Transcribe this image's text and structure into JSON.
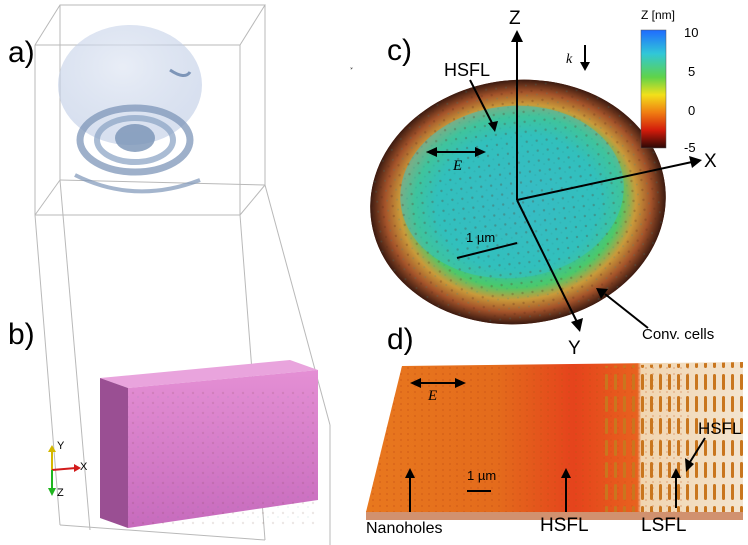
{
  "panels": {
    "a": "a)",
    "b": "b)",
    "c": "c)",
    "d": "d)"
  },
  "panel_b_axes": {
    "y": "Y",
    "x": "X",
    "z": "Z"
  },
  "panel_c": {
    "axes": {
      "z": "Z",
      "x": "X",
      "y": "Y"
    },
    "hsfl": "HSFL",
    "e_vector": "E",
    "k_vector": "k",
    "scale_bar": "1 µm",
    "conv_cells": "Conv. cells",
    "stray_mark": "ꜘ",
    "colorbar": {
      "title": "Z [nm]",
      "ticks": [
        "10",
        "5",
        "0",
        "-5"
      ],
      "range": [
        -5,
        10
      ],
      "colors": [
        "#1f6bff",
        "#31c7d8",
        "#5fd34a",
        "#f2e01a",
        "#f07d12",
        "#d21b0b",
        "#2a0805"
      ]
    }
  },
  "panel_d": {
    "e_vector": "E",
    "scale_bar": "1 µm",
    "nanoholes": "Nanoholes",
    "hsfl_mid": "HSFL",
    "lsfl": "LSFL",
    "hsfl_right": "HSFL"
  }
}
